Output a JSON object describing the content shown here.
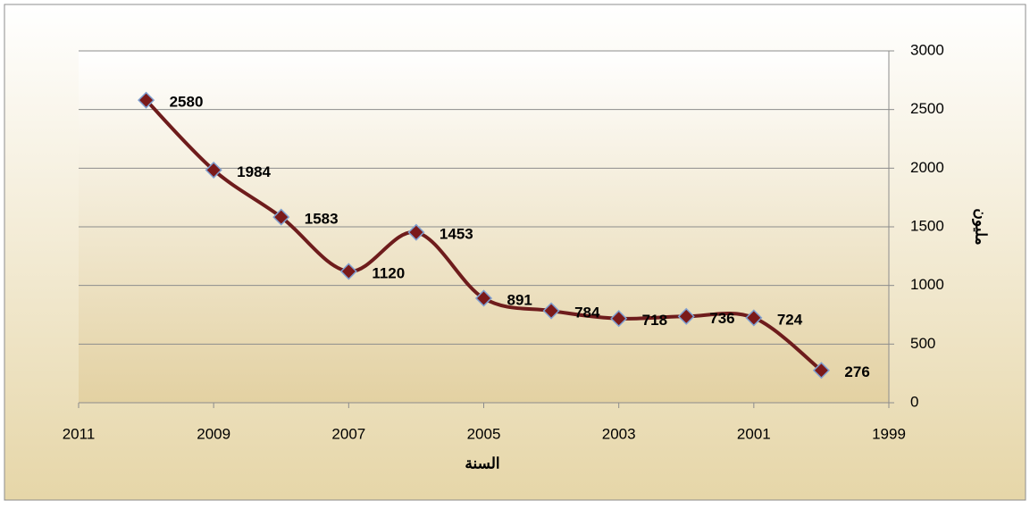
{
  "chart_data": {
    "type": "line",
    "x": [
      2010,
      2009,
      2008,
      2007,
      2006,
      2005,
      2004,
      2003,
      2002,
      2001,
      2000
    ],
    "values": [
      2580,
      1984,
      1583,
      1120,
      1453,
      891,
      784,
      718,
      736,
      724,
      276
    ],
    "color": "#6e1c1c",
    "marker_color": "#7b1a1a",
    "xlim": [
      2011,
      1999
    ],
    "xticks": [
      2011,
      2009,
      2007,
      2005,
      2003,
      2001,
      1999
    ],
    "ylim": [
      0,
      3000
    ],
    "yticks": [
      0,
      500,
      1000,
      1500,
      2000,
      2500,
      3000
    ],
    "y_axis_side": "right",
    "xlabel": "السنة",
    "ylabel": "مليون",
    "grid": true
  }
}
